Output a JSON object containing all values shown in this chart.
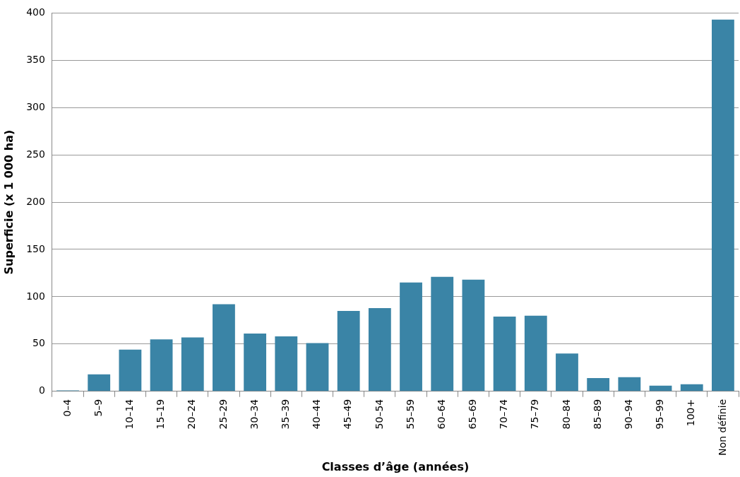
{
  "chart_data": {
    "type": "bar",
    "xlabel": "Classes d’âge (années)",
    "ylabel": "Superficie (x 1 000 ha)",
    "categories": [
      "0–4",
      "5–9",
      "10–14",
      "15–19",
      "20–24",
      "25–29",
      "30–34",
      "35–39",
      "40–44",
      "45–49",
      "50–54",
      "55–59",
      "60–64",
      "65–69",
      "70–74",
      "75–79",
      "80–84",
      "85–89",
      "90–94",
      "95–99",
      "100+",
      "Non définie"
    ],
    "values": [
      1,
      18,
      44,
      55,
      57,
      92,
      61,
      58,
      51,
      85,
      88,
      115,
      121,
      118,
      79,
      80,
      40,
      14,
      15,
      6,
      7.5,
      393
    ],
    "color": "#3a84a6",
    "ylim": [
      0,
      400
    ],
    "yticks": [
      0,
      50,
      100,
      150,
      200,
      250,
      300,
      350,
      400
    ],
    "grid": "y"
  }
}
